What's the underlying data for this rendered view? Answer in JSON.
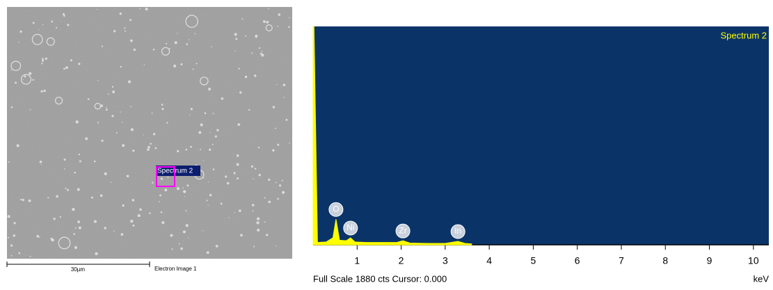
{
  "sem_image": {
    "label": "Spectrum 2",
    "scale_bar": "30µm",
    "caption": "Electron Image 1"
  },
  "chart_data": {
    "type": "area",
    "title": "Spectrum 2",
    "x": [
      0,
      0.02,
      0.1,
      0.3,
      0.45,
      0.52,
      0.6,
      0.75,
      0.85,
      0.95,
      1.2,
      1.5,
      1.9,
      2.04,
      2.2,
      2.6,
      3.0,
      3.29,
      3.45,
      3.6
    ],
    "series": [
      {
        "color": "#ffff00",
        "values": [
          1880,
          1880,
          20,
          25,
          60,
          220,
          40,
          35,
          60,
          25,
          20,
          20,
          20,
          35,
          15,
          12,
          12,
          30,
          12,
          8
        ]
      }
    ],
    "xlim": [
      0,
      10.35
    ],
    "xticks": [
      1,
      2,
      3,
      4,
      5,
      6,
      7,
      8,
      9,
      10
    ],
    "ylim": [
      0,
      1880
    ],
    "xlabel": "keV",
    "footer": "Full Scale 1880 cts Cursor: 0.000",
    "peaks": [
      {
        "label": "O",
        "x": 0.52
      },
      {
        "label": "Ni",
        "x": 0.85
      },
      {
        "label": "Zr",
        "x": 2.04
      },
      {
        "label": "In",
        "x": 3.29
      }
    ]
  }
}
